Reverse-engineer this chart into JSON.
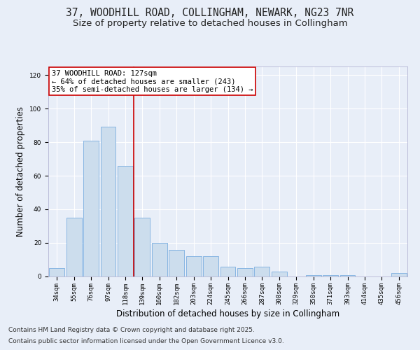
{
  "title_line1": "37, WOODHILL ROAD, COLLINGHAM, NEWARK, NG23 7NR",
  "title_line2": "Size of property relative to detached houses in Collingham",
  "xlabel": "Distribution of detached houses by size in Collingham",
  "ylabel": "Number of detached properties",
  "categories": [
    "34sqm",
    "55sqm",
    "76sqm",
    "97sqm",
    "118sqm",
    "139sqm",
    "160sqm",
    "182sqm",
    "203sqm",
    "224sqm",
    "245sqm",
    "266sqm",
    "287sqm",
    "308sqm",
    "329sqm",
    "350sqm",
    "371sqm",
    "393sqm",
    "414sqm",
    "435sqm",
    "456sqm"
  ],
  "values": [
    5,
    35,
    81,
    89,
    66,
    35,
    20,
    16,
    12,
    12,
    6,
    5,
    6,
    3,
    0,
    1,
    1,
    1,
    0,
    0,
    2
  ],
  "bar_color": "#ccdded",
  "bar_edge_color": "#7aade0",
  "annotation_text": "37 WOODHILL ROAD: 127sqm\n← 64% of detached houses are smaller (243)\n35% of semi-detached houses are larger (134) →",
  "vline_color": "#cc0000",
  "annotation_box_color": "#ffffff",
  "annotation_box_edge_color": "#cc0000",
  "ylim": [
    0,
    125
  ],
  "yticks": [
    0,
    20,
    40,
    60,
    80,
    100,
    120
  ],
  "background_color": "#e8eef8",
  "plot_bg_color": "#e8eef8",
  "footer_line1": "Contains HM Land Registry data © Crown copyright and database right 2025.",
  "footer_line2": "Contains public sector information licensed under the Open Government Licence v3.0.",
  "title_fontsize": 10.5,
  "subtitle_fontsize": 9.5,
  "axis_label_fontsize": 8.5,
  "tick_fontsize": 6.5,
  "annotation_fontsize": 7.5,
  "footer_fontsize": 6.5,
  "vline_pos": 4.5
}
